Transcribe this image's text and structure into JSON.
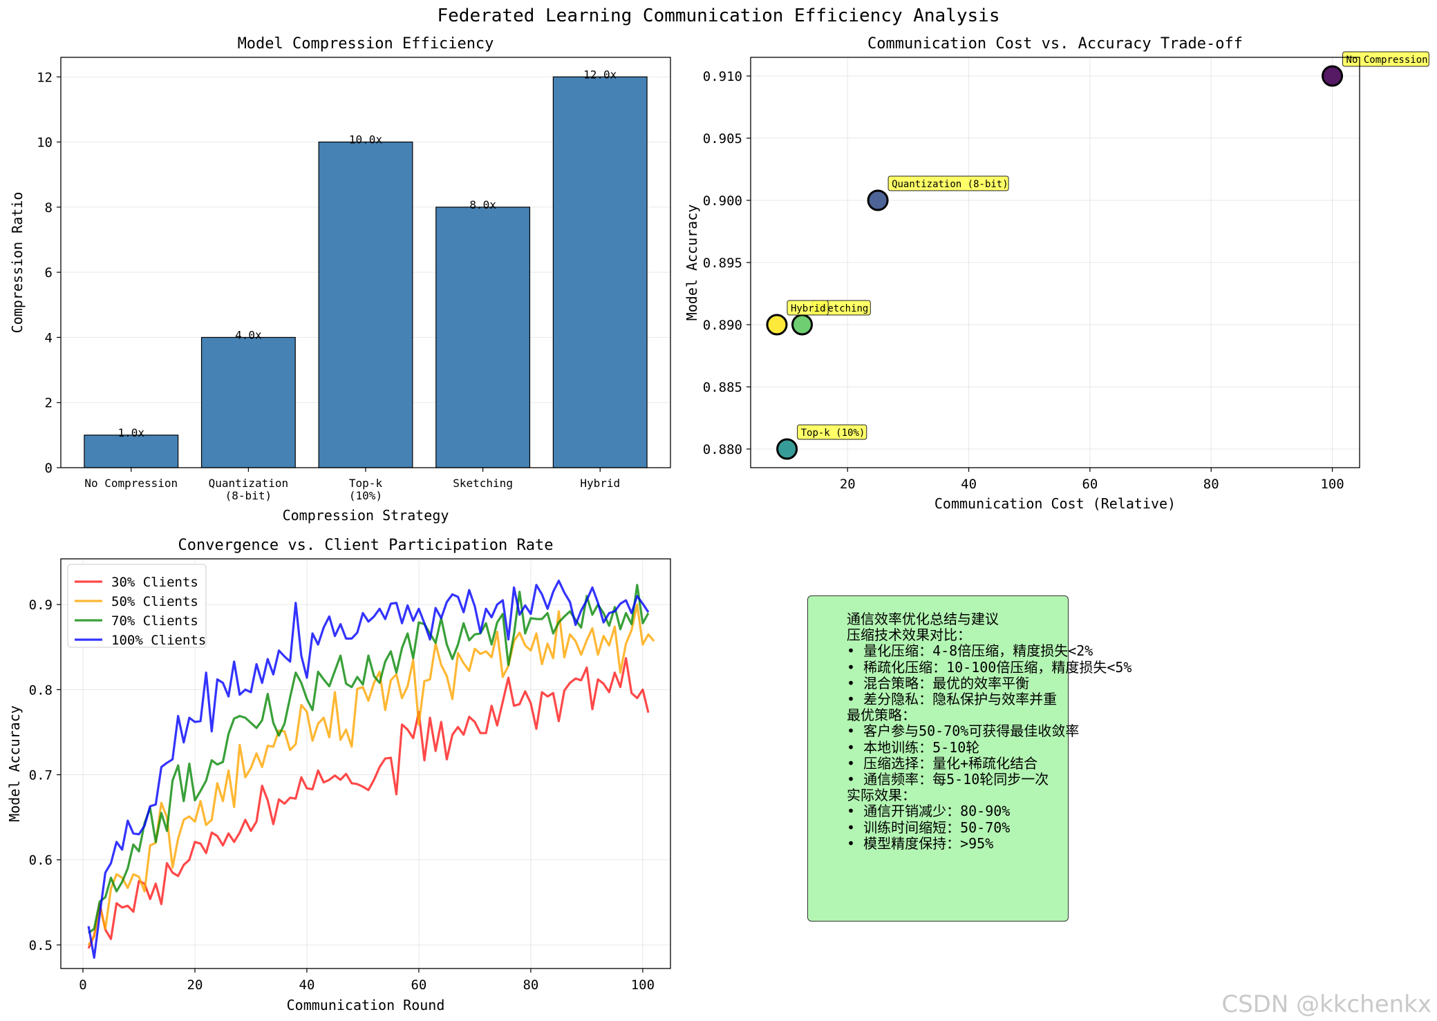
{
  "figure": {
    "title": "Federated Learning Communication Efficiency Analysis",
    "watermark": "CSDN @kkchenkx",
    "colors": {
      "bar": "#4682b4",
      "c30": "#ff1a1a",
      "c50": "#ffa500",
      "c70": "#088808",
      "c100": "#0000ff",
      "annotation": "#ffff4d",
      "summary_bg": "#b3f5b3"
    }
  },
  "chart_data": [
    {
      "type": "bar",
      "title": "Model Compression Efficiency",
      "xlabel": "Compression Strategy",
      "ylabel": "Compression Ratio",
      "categories": [
        "No Compression",
        "Quantization\n(8-bit)",
        "Top-k\n(10%)",
        "Sketching",
        "Hybrid"
      ],
      "values": [
        1.0,
        4.0,
        10.0,
        8.0,
        12.0
      ],
      "value_labels": [
        "1.0x",
        "4.0x",
        "10.0x",
        "8.0x",
        "12.0x"
      ],
      "ylim": [
        0,
        12.6
      ],
      "yticks": [
        0,
        2,
        4,
        6,
        8,
        10,
        12
      ],
      "grid": true
    },
    {
      "type": "scatter",
      "title": "Communication Cost vs. Accuracy Trade-off",
      "xlabel": "Communication Cost (Relative)",
      "ylabel": "Model Accuracy",
      "points": [
        {
          "label": "No Compression",
          "x": 100,
          "y": 0.91,
          "color": "#440154"
        },
        {
          "label": "Quantization (8-bit)",
          "x": 25,
          "y": 0.9,
          "color": "#3b528b"
        },
        {
          "label": "Top-k (10%)",
          "x": 10,
          "y": 0.88,
          "color": "#21918c"
        },
        {
          "label": "Sketching",
          "x": 12.5,
          "y": 0.89,
          "color": "#5ec962"
        },
        {
          "label": "Hybrid",
          "x": 8.33,
          "y": 0.89,
          "color": "#fde725"
        }
      ],
      "xlim": [
        4,
        104.5
      ],
      "ylim": [
        0.8785,
        0.9115
      ],
      "xticks": [
        20,
        40,
        60,
        80,
        100
      ],
      "yticks": [
        0.88,
        0.885,
        0.89,
        0.895,
        0.9,
        0.905,
        0.91
      ],
      "grid": true
    },
    {
      "type": "line",
      "title": "Convergence vs. Client Participation Rate",
      "xlabel": "Communication Round",
      "ylabel": "Model Accuracy",
      "xlim": [
        -3.95,
        104.95
      ],
      "ylim": [
        0.4723,
        0.9537
      ],
      "xticks": [
        0,
        20,
        40,
        60,
        80,
        100
      ],
      "yticks": [
        0.5,
        0.6,
        0.7,
        0.8,
        0.9
      ],
      "legend": "upper-left",
      "grid": true,
      "x_start": 1,
      "series": [
        {
          "name": "30% Clients",
          "color": "#ff1a1a",
          "values": [
            0.496,
            0.511,
            0.548,
            0.518,
            0.507,
            0.549,
            0.544,
            0.546,
            0.539,
            0.575,
            0.572,
            0.554,
            0.572,
            0.548,
            0.596,
            0.585,
            0.581,
            0.594,
            0.6,
            0.621,
            0.619,
            0.608,
            0.632,
            0.628,
            0.617,
            0.631,
            0.621,
            0.632,
            0.647,
            0.634,
            0.645,
            0.687,
            0.67,
            0.642,
            0.671,
            0.666,
            0.673,
            0.672,
            0.697,
            0.684,
            0.683,
            0.705,
            0.691,
            0.694,
            0.699,
            0.694,
            0.701,
            0.69,
            0.689,
            0.686,
            0.682,
            0.694,
            0.709,
            0.719,
            0.72,
            0.677,
            0.759,
            0.753,
            0.743,
            0.774,
            0.717,
            0.767,
            0.728,
            0.762,
            0.718,
            0.747,
            0.756,
            0.747,
            0.768,
            0.762,
            0.749,
            0.749,
            0.781,
            0.758,
            0.786,
            0.814,
            0.781,
            0.783,
            0.798,
            0.784,
            0.754,
            0.797,
            0.792,
            0.796,
            0.763,
            0.799,
            0.808,
            0.813,
            0.811,
            0.826,
            0.777,
            0.812,
            0.807,
            0.797,
            0.82,
            0.803,
            0.837,
            0.796,
            0.79,
            0.8,
            0.773
          ]
        },
        {
          "name": "50% Clients",
          "color": "#ffa500",
          "values": [
            0.5,
            0.51,
            0.546,
            0.519,
            0.566,
            0.583,
            0.579,
            0.567,
            0.583,
            0.58,
            0.563,
            0.617,
            0.62,
            0.667,
            0.65,
            0.591,
            0.625,
            0.647,
            0.651,
            0.645,
            0.669,
            0.641,
            0.647,
            0.69,
            0.669,
            0.705,
            0.662,
            0.735,
            0.697,
            0.708,
            0.725,
            0.709,
            0.734,
            0.733,
            0.752,
            0.751,
            0.729,
            0.736,
            0.782,
            0.774,
            0.74,
            0.76,
            0.767,
            0.744,
            0.797,
            0.741,
            0.753,
            0.733,
            0.801,
            0.803,
            0.787,
            0.808,
            0.821,
            0.776,
            0.811,
            0.818,
            0.79,
            0.804,
            0.835,
            0.759,
            0.81,
            0.812,
            0.854,
            0.829,
            0.816,
            0.789,
            0.843,
            0.831,
            0.822,
            0.848,
            0.842,
            0.845,
            0.838,
            0.868,
            0.815,
            0.828,
            0.857,
            0.867,
            0.852,
            0.846,
            0.866,
            0.83,
            0.854,
            0.837,
            0.892,
            0.838,
            0.865,
            0.857,
            0.841,
            0.858,
            0.872,
            0.841,
            0.863,
            0.852,
            0.874,
            0.82,
            0.854,
            0.87,
            0.9,
            0.853,
            0.865,
            0.857
          ]
        },
        {
          "name": "70% Clients",
          "color": "#088808",
          "values": [
            0.514,
            0.519,
            0.551,
            0.556,
            0.579,
            0.563,
            0.574,
            0.59,
            0.618,
            0.61,
            0.643,
            0.661,
            0.621,
            0.655,
            0.634,
            0.693,
            0.711,
            0.669,
            0.713,
            0.67,
            0.681,
            0.693,
            0.717,
            0.712,
            0.715,
            0.748,
            0.766,
            0.769,
            0.767,
            0.761,
            0.755,
            0.764,
            0.795,
            0.761,
            0.746,
            0.76,
            0.791,
            0.82,
            0.808,
            0.789,
            0.776,
            0.821,
            0.812,
            0.804,
            0.822,
            0.84,
            0.807,
            0.803,
            0.815,
            0.806,
            0.84,
            0.816,
            0.808,
            0.833,
            0.845,
            0.82,
            0.849,
            0.866,
            0.837,
            0.879,
            0.877,
            0.866,
            0.855,
            0.884,
            0.853,
            0.836,
            0.853,
            0.878,
            0.858,
            0.865,
            0.866,
            0.878,
            0.853,
            0.879,
            0.889,
            0.829,
            0.865,
            0.915,
            0.866,
            0.884,
            0.883,
            0.883,
            0.89,
            0.866,
            0.879,
            0.886,
            0.892,
            0.882,
            0.873,
            0.91,
            0.888,
            0.9,
            0.89,
            0.875,
            0.897,
            0.871,
            0.89,
            0.877,
            0.923,
            0.878,
            0.89
          ]
        },
        {
          "name": "100% Clients",
          "color": "#0000ff",
          "values": [
            0.522,
            0.485,
            0.536,
            0.585,
            0.596,
            0.621,
            0.612,
            0.646,
            0.631,
            0.63,
            0.64,
            0.663,
            0.665,
            0.709,
            0.714,
            0.718,
            0.769,
            0.738,
            0.767,
            0.762,
            0.763,
            0.82,
            0.751,
            0.812,
            0.808,
            0.792,
            0.833,
            0.794,
            0.8,
            0.797,
            0.83,
            0.808,
            0.836,
            0.818,
            0.846,
            0.839,
            0.833,
            0.902,
            0.84,
            0.814,
            0.866,
            0.853,
            0.873,
            0.886,
            0.863,
            0.877,
            0.86,
            0.86,
            0.867,
            0.89,
            0.88,
            0.886,
            0.895,
            0.883,
            0.901,
            0.902,
            0.878,
            0.899,
            0.881,
            0.895,
            0.878,
            0.859,
            0.896,
            0.884,
            0.903,
            0.912,
            0.909,
            0.891,
            0.917,
            0.898,
            0.867,
            0.895,
            0.885,
            0.9,
            0.905,
            0.859,
            0.92,
            0.888,
            0.899,
            0.889,
            0.923,
            0.912,
            0.895,
            0.915,
            0.928,
            0.914,
            0.903,
            0.876,
            0.893,
            0.905,
            0.92,
            0.902,
            0.879,
            0.89,
            0.892,
            0.901,
            0.905,
            0.89,
            0.91,
            0.901,
            0.891
          ]
        }
      ]
    }
  ],
  "summary": {
    "lines": [
      "通信效率优化总结与建议",
      "",
      "压缩技术效果对比：",
      "• 量化压缩：4-8倍压缩，精度损失<2%",
      "• 稀疏化压缩：10-100倍压缩，精度损失<5%",
      "• 混合策略：最优的效率平衡",
      "• 差分隐私：隐私保护与效率并重",
      "",
      "最优策略：",
      "• 客户参与50-70%可获得最佳收敛率",
      "• 本地训练：5-10轮",
      "• 压缩选择：量化+稀疏化结合",
      "• 通信频率：每5-10轮同步一次",
      "",
      "实际效果：",
      "• 通信开销减少：80-90%",
      "• 训练时间缩短：50-70%",
      "• 模型精度保持：>95%"
    ]
  }
}
